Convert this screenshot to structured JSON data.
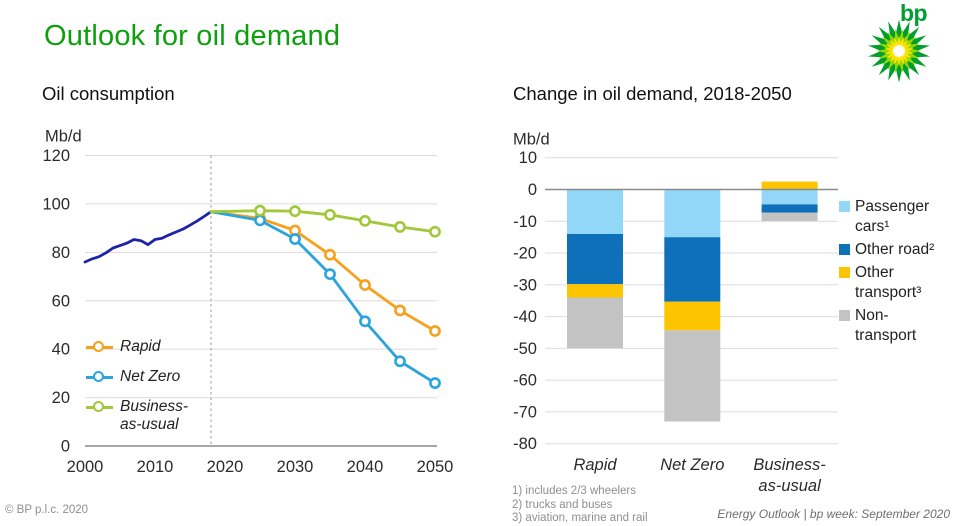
{
  "page": {
    "title": "Outlook for oil demand",
    "logo_text": "bp",
    "footer_left": "© BP p.l.c. 2020",
    "footer_right": "Energy Outlook | bp week: September 2020",
    "footnotes": [
      "1) includes 2/3 wheelers",
      "2) trucks and buses",
      "3) aviation, marine and rail"
    ]
  },
  "colors": {
    "title_green": "#0d9f0d",
    "logo_green": "#009e2e",
    "logo_mid_green": "#97d700",
    "logo_yellow": "#ffe400",
    "grid": "#dcdcdc",
    "axis": "#8a8a8a",
    "divider": "#9b9b9b",
    "text": "#2b2b2b",
    "muted": "#8f8f8f"
  },
  "chart_data": [
    {
      "type": "line",
      "title": "Oil consumption",
      "ylabel": "Mb/d",
      "ylim": [
        0,
        120
      ],
      "yticks": [
        120,
        100,
        80,
        60,
        40,
        20,
        0
      ],
      "xticks": [
        2000,
        2010,
        2020,
        2030,
        2040,
        2050
      ],
      "xlim": [
        2000,
        2050
      ],
      "divider_year": 2018,
      "grid": true,
      "legend_position": "inside-lower-left",
      "series": [
        {
          "name": "History",
          "color": "#1d24a6",
          "legend": false,
          "markers": false,
          "x": [
            2000,
            2001,
            2002,
            2003,
            2004,
            2005,
            2006,
            2007,
            2008,
            2009,
            2010,
            2011,
            2012,
            2013,
            2014,
            2015,
            2016,
            2017,
            2018
          ],
          "values": [
            76,
            77.3,
            78.2,
            79.8,
            81.8,
            82.8,
            83.8,
            85.3,
            84.8,
            83.2,
            85.3,
            85.8,
            87.2,
            88.4,
            89.6,
            91.2,
            92.9,
            94.8,
            96.8
          ]
        },
        {
          "name": "Rapid",
          "color": "#f6a01e",
          "legend": true,
          "markers": true,
          "x": [
            2018,
            2025,
            2030,
            2035,
            2040,
            2045,
            2050
          ],
          "values": [
            96.8,
            94,
            89,
            79,
            66.5,
            56,
            47.5
          ]
        },
        {
          "name": "Net Zero",
          "color": "#2aa4dc",
          "legend": true,
          "markers": true,
          "x": [
            2018,
            2025,
            2030,
            2035,
            2040,
            2045,
            2050
          ],
          "values": [
            96.8,
            93.2,
            85.5,
            71,
            51.5,
            35,
            26
          ]
        },
        {
          "name": "Business-as-usual",
          "color": "#a0c83a",
          "legend": true,
          "markers": true,
          "x": [
            2018,
            2025,
            2030,
            2035,
            2040,
            2045,
            2050
          ],
          "values": [
            96.8,
            97.2,
            97,
            95.5,
            93,
            90.5,
            88.5
          ]
        }
      ]
    },
    {
      "type": "stacked-bar",
      "title": "Change in oil demand, 2018-2050",
      "ylabel": "Mb/d",
      "ylim": [
        -80,
        10
      ],
      "yticks": [
        10,
        0,
        -10,
        -20,
        -30,
        -40,
        -50,
        -60,
        -70,
        -80
      ],
      "categories": [
        "Rapid",
        "Net Zero",
        "Business-as-usual"
      ],
      "legend_position": "right",
      "series": [
        {
          "name": "Passenger cars¹",
          "color": "#92d7f7",
          "values": [
            -14,
            -15,
            -4.7
          ]
        },
        {
          "name": "Other road²",
          "color": "#0d70b8",
          "values": [
            -15.8,
            -20.3,
            -2.6
          ]
        },
        {
          "name": "Other transport³",
          "color": "#fdc400",
          "values": [
            -4.2,
            -9,
            2.5
          ]
        },
        {
          "name": "Non-transport",
          "color": "#c3c3c3",
          "values": [
            -16,
            -28.7,
            -2.6
          ]
        }
      ]
    }
  ]
}
